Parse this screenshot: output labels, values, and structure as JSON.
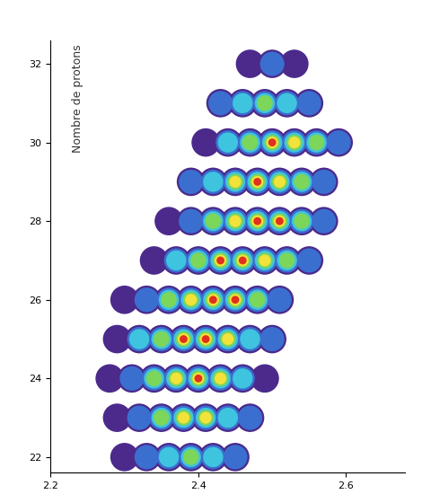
{
  "chart_data": {
    "type": "scatter",
    "y_label": "Nombre de protons",
    "xlim": [
      2.2,
      2.68
    ],
    "xticks": [
      2.2,
      2.4,
      2.6
    ],
    "ylim": [
      21.6,
      32.6
    ],
    "yticks": [
      22,
      24,
      26,
      28,
      30,
      32
    ],
    "grid": false,
    "rows": [
      {
        "y": 22,
        "x": [
          2.3,
          2.33,
          2.36,
          2.39,
          2.42,
          2.45
        ],
        "values": [
          1,
          2,
          3,
          4,
          3,
          2
        ]
      },
      {
        "y": 23,
        "x": [
          2.29,
          2.32,
          2.35,
          2.38,
          2.41,
          2.44,
          2.47
        ],
        "values": [
          1,
          2,
          4,
          5,
          5,
          3,
          2
        ]
      },
      {
        "y": 24,
        "x": [
          2.28,
          2.31,
          2.34,
          2.37,
          2.4,
          2.43,
          2.46,
          2.49
        ],
        "values": [
          1,
          2,
          4,
          5,
          6,
          5,
          3,
          1
        ]
      },
      {
        "y": 25,
        "x": [
          2.29,
          2.32,
          2.35,
          2.38,
          2.41,
          2.44,
          2.47,
          2.5
        ],
        "values": [
          1,
          3,
          4,
          6,
          6,
          5,
          3,
          2
        ]
      },
      {
        "y": 26,
        "x": [
          2.3,
          2.33,
          2.36,
          2.39,
          2.42,
          2.45,
          2.48,
          2.51
        ],
        "values": [
          1,
          2,
          4,
          5,
          6,
          6,
          4,
          2
        ]
      },
      {
        "y": 27,
        "x": [
          2.34,
          2.37,
          2.4,
          2.43,
          2.46,
          2.49,
          2.52,
          2.55
        ],
        "values": [
          1,
          3,
          4,
          6,
          6,
          5,
          4,
          2
        ]
      },
      {
        "y": 28,
        "x": [
          2.36,
          2.39,
          2.42,
          2.45,
          2.48,
          2.51,
          2.54,
          2.57
        ],
        "values": [
          1,
          2,
          4,
          5,
          6,
          6,
          4,
          2
        ]
      },
      {
        "y": 29,
        "x": [
          2.39,
          2.42,
          2.45,
          2.48,
          2.51,
          2.54,
          2.57
        ],
        "values": [
          2,
          3,
          5,
          6,
          5,
          4,
          2
        ]
      },
      {
        "y": 30,
        "x": [
          2.41,
          2.44,
          2.47,
          2.5,
          2.53,
          2.56,
          2.59
        ],
        "values": [
          1,
          3,
          4,
          6,
          5,
          4,
          2
        ]
      },
      {
        "y": 31,
        "x": [
          2.43,
          2.46,
          2.49,
          2.52,
          2.55
        ],
        "values": [
          2,
          3,
          4,
          3,
          2
        ]
      },
      {
        "y": 32,
        "x": [
          2.47,
          2.5,
          2.53
        ],
        "values": [
          1,
          2,
          1
        ]
      }
    ]
  }
}
